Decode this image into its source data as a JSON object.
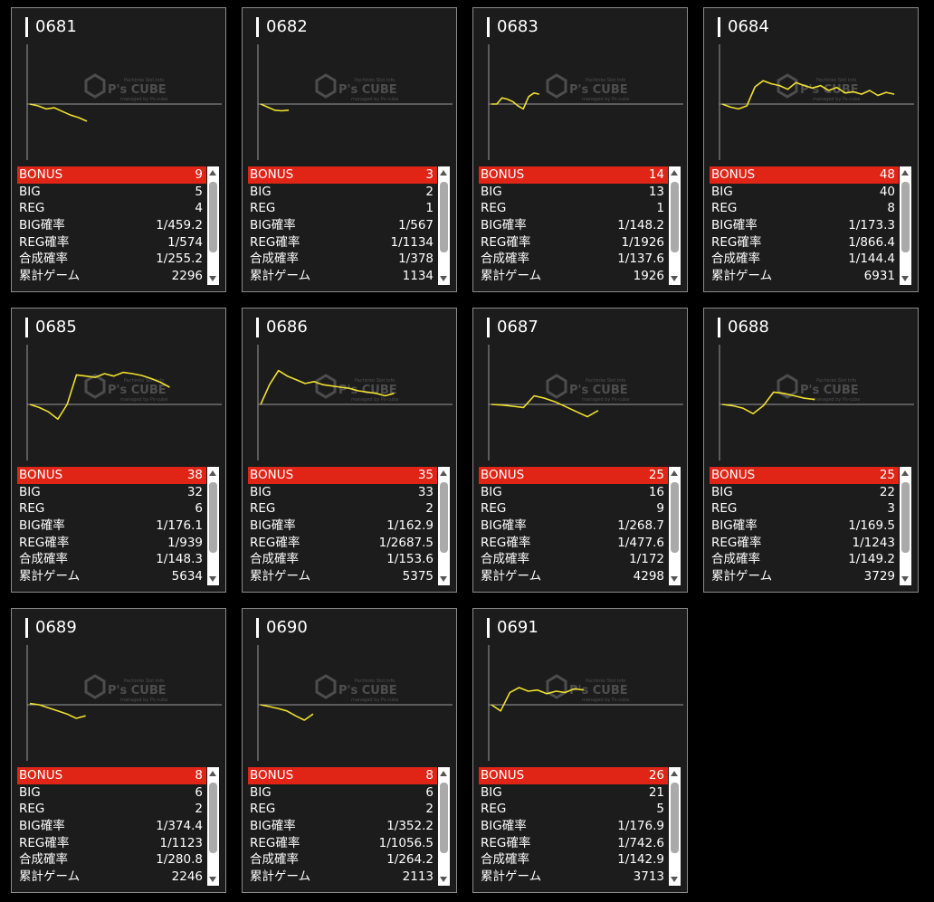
{
  "logo": {
    "brand": "P's CUBE",
    "top_text": "Pachinko Slot Info",
    "sub_text": "managed by Ps-cube"
  },
  "colors": {
    "bonus_row": "#e02416",
    "graph_line": "#f0e030",
    "card_bg": "#1c1c1c"
  },
  "cards": [
    {
      "id": "0681",
      "graph": [
        0,
        -3,
        -8,
        -6,
        -12,
        -18,
        -22,
        -28
      ],
      "labels": [
        "BONUS",
        "BIG",
        "REG",
        "BIG確率",
        "REG確率",
        "合成確率",
        "累計ゲーム"
      ],
      "values": [
        "9",
        "5",
        "4",
        "1/459.2",
        "1/574",
        "1/255.2",
        "2296"
      ]
    },
    {
      "id": "0682",
      "graph": [
        0,
        -5,
        -10,
        -11,
        -10
      ],
      "labels": [
        "BONUS",
        "BIG",
        "REG",
        "BIG確率",
        "REG確率",
        "合成確率",
        "累計ゲーム"
      ],
      "values": [
        "3",
        "2",
        "1",
        "1/567",
        "1/1134",
        "1/378",
        "1134"
      ]
    },
    {
      "id": "0683",
      "graph": [
        0,
        0,
        10,
        8,
        4,
        -3,
        -8,
        12,
        18,
        16
      ],
      "labels": [
        "BONUS",
        "BIG",
        "REG",
        "BIG確率",
        "REG確率",
        "合成確率",
        "累計ゲーム"
      ],
      "values": [
        "14",
        "13",
        "1",
        "1/148.2",
        "1/1926",
        "1/137.6",
        "1926"
      ]
    },
    {
      "id": "0684",
      "graph": [
        0,
        -5,
        -8,
        -3,
        28,
        38,
        33,
        30,
        24,
        35,
        30,
        26,
        30,
        22,
        27,
        18,
        20,
        16,
        22,
        14,
        19,
        16
      ],
      "labels": [
        "BONUS",
        "BIG",
        "REG",
        "BIG確率",
        "REG確率",
        "合成確率",
        "累計ゲーム"
      ],
      "values": [
        "48",
        "40",
        "8",
        "1/173.3",
        "1/866.4",
        "1/144.4",
        "6931"
      ]
    },
    {
      "id": "0685",
      "graph": [
        0,
        -5,
        -12,
        -24,
        0,
        48,
        46,
        44,
        50,
        46,
        52,
        50,
        47,
        42,
        36,
        28
      ],
      "labels": [
        "BONUS",
        "BIG",
        "REG",
        "BIG確率",
        "REG確率",
        "合成確率",
        "累計ゲーム"
      ],
      "values": [
        "38",
        "32",
        "6",
        "1/176.1",
        "1/939",
        "1/148.3",
        "5634"
      ]
    },
    {
      "id": "0686",
      "graph": [
        0,
        32,
        55,
        46,
        40,
        34,
        37,
        32,
        30,
        28,
        26,
        22,
        20,
        18,
        14,
        18
      ],
      "labels": [
        "BONUS",
        "BIG",
        "REG",
        "BIG確率",
        "REG確率",
        "合成確率",
        "累計ゲーム"
      ],
      "values": [
        "35",
        "33",
        "2",
        "1/162.9",
        "1/2687.5",
        "1/153.6",
        "5375"
      ]
    },
    {
      "id": "0687",
      "graph": [
        0,
        -1,
        -3,
        -5,
        14,
        10,
        4,
        -4,
        -12,
        -20,
        -10
      ],
      "labels": [
        "BONUS",
        "BIG",
        "REG",
        "BIG確率",
        "REG確率",
        "合成確率",
        "累計ゲーム"
      ],
      "values": [
        "25",
        "16",
        "9",
        "1/268.7",
        "1/477.6",
        "1/172",
        "4298"
      ]
    },
    {
      "id": "0688",
      "graph": [
        0,
        -2,
        -6,
        -15,
        -2,
        20,
        18,
        14,
        10,
        8
      ],
      "labels": [
        "BONUS",
        "BIG",
        "REG",
        "BIG確率",
        "REG確率",
        "合成確率",
        "累計ゲーム"
      ],
      "values": [
        "25",
        "22",
        "3",
        "1/169.5",
        "1/1243",
        "1/149.2",
        "3729"
      ]
    },
    {
      "id": "0689",
      "graph": [
        2,
        0,
        -5,
        -10,
        -15,
        -22,
        -18
      ],
      "labels": [
        "BONUS",
        "BIG",
        "REG",
        "BIG確率",
        "REG確率",
        "合成確率",
        "累計ゲーム"
      ],
      "values": [
        "8",
        "6",
        "2",
        "1/374.4",
        "1/1123",
        "1/280.8",
        "2246"
      ]
    },
    {
      "id": "0690",
      "graph": [
        0,
        -3,
        -6,
        -10,
        -18,
        -25,
        -15
      ],
      "labels": [
        "BONUS",
        "BIG",
        "REG",
        "BIG確率",
        "REG確率",
        "合成確率",
        "累計ゲーム"
      ],
      "values": [
        "8",
        "6",
        "2",
        "1/352.2",
        "1/1056.5",
        "1/264.2",
        "2113"
      ]
    },
    {
      "id": "0691",
      "graph": [
        0,
        -10,
        20,
        28,
        22,
        24,
        18,
        22,
        20,
        26,
        24
      ],
      "labels": [
        "BONUS",
        "BIG",
        "REG",
        "BIG確率",
        "REG確率",
        "合成確率",
        "累計ゲーム"
      ],
      "values": [
        "26",
        "21",
        "5",
        "1/176.9",
        "1/742.6",
        "1/142.9",
        "3713"
      ]
    }
  ]
}
